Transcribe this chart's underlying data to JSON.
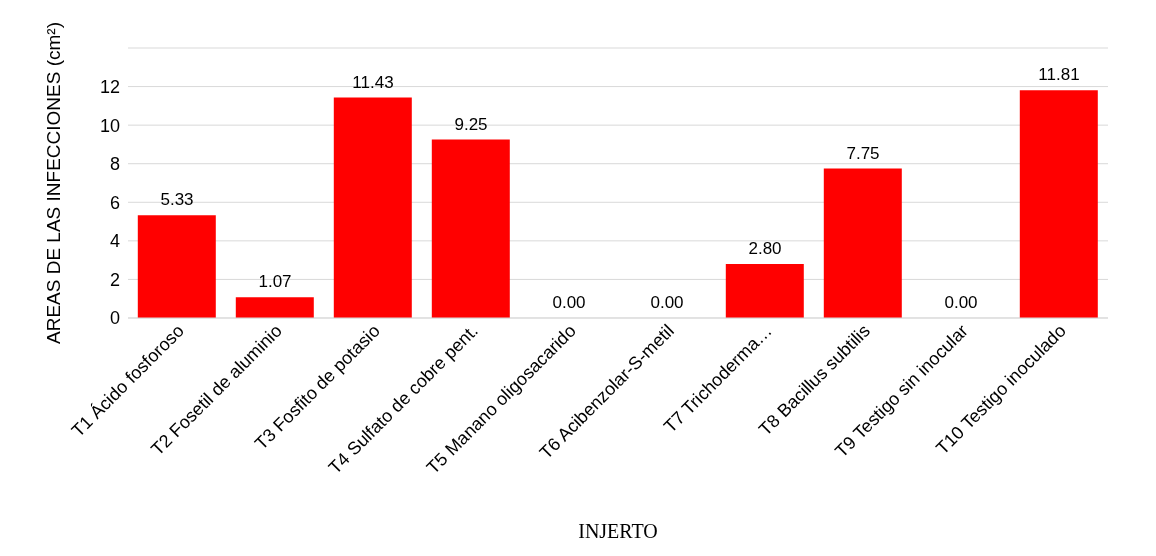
{
  "chart_data": {
    "type": "bar",
    "xlabel": "INJERTO",
    "ylabel": "AREAS  DE LAS INFECCIONES  (cm²)",
    "categories": [
      "T1 Ácido fosforoso",
      "T2 Fosetil de aluminio",
      "T3 Fosfito de potasio",
      "T4 Sulfato de cobre pent.",
      "T5 Manano oligosacarido",
      "T6 Acibenzolar-S-metil",
      "T7 Trichoderma…",
      "T8 Bacillus subtilis",
      "T9 Testigo sin inocular",
      "T10 Testigo inoculado"
    ],
    "values": [
      5.33,
      1.07,
      11.43,
      9.25,
      0,
      0,
      2.8,
      7.75,
      0,
      11.81
    ],
    "value_labels": [
      "5.33",
      "1.07",
      "11.43",
      "9.25",
      "0.00",
      "0.00",
      "2.80",
      "7.75",
      "0.00",
      "11.81"
    ],
    "color": "#ff0000",
    "ylim": [
      0,
      14
    ],
    "yticks": [
      0,
      2,
      4,
      6,
      8,
      10,
      12,
      {
        "value": 14,
        "label": null
      }
    ],
    "grid": "y"
  }
}
